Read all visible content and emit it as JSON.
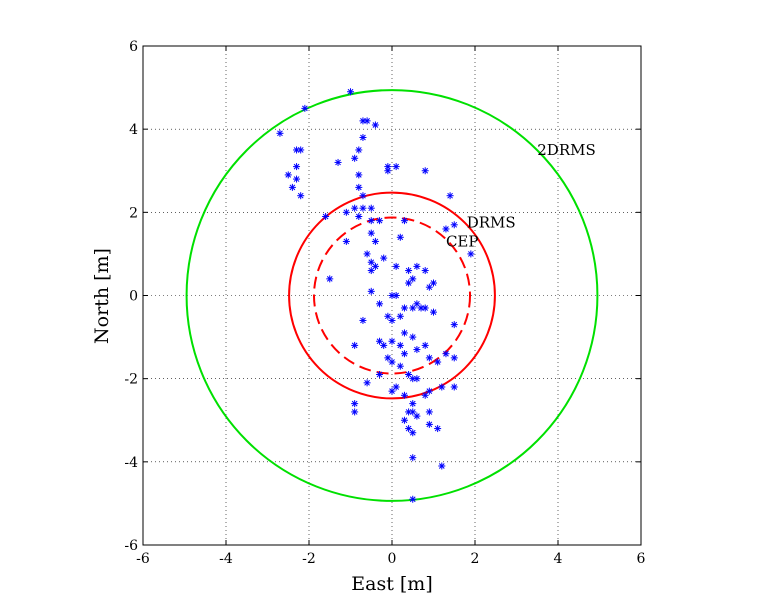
{
  "chart_data": {
    "type": "scatter",
    "title": "",
    "xlabel": "East [m]",
    "ylabel": "North [m]",
    "xlim": [
      -6,
      6
    ],
    "ylim": [
      -6,
      6
    ],
    "xticks": [
      "-6",
      "-4",
      "-2",
      "0",
      "2",
      "4",
      "6"
    ],
    "yticks": [
      "-6",
      "-4",
      "-2",
      "0",
      "2",
      "4",
      "6"
    ],
    "grid": true,
    "point_color": "#0000ff",
    "center": [
      0,
      0
    ],
    "circles": [
      {
        "label": "2DRMS",
        "radius": 4.95,
        "color": "#00e000",
        "style": "solid",
        "label_pos": [
          3.5,
          3.5
        ]
      },
      {
        "label": "DRMS",
        "radius": 2.48,
        "color": "#ff0000",
        "style": "solid",
        "label_pos": [
          1.8,
          1.75
        ]
      },
      {
        "label": "CEP",
        "radius": 1.88,
        "color": "#ff0000",
        "style": "dashed",
        "label_pos": [
          1.3,
          1.3
        ]
      }
    ],
    "points": [
      [
        -1.0,
        4.9
      ],
      [
        -2.1,
        4.5
      ],
      [
        -2.7,
        3.9
      ],
      [
        -2.2,
        3.5
      ],
      [
        -2.3,
        3.5
      ],
      [
        -2.5,
        2.9
      ],
      [
        -2.3,
        3.1
      ],
      [
        -2.3,
        2.8
      ],
      [
        -2.4,
        2.6
      ],
      [
        -2.2,
        2.4
      ],
      [
        -0.7,
        4.2
      ],
      [
        -0.6,
        4.2
      ],
      [
        -0.4,
        4.1
      ],
      [
        -0.7,
        3.8
      ],
      [
        -0.8,
        3.5
      ],
      [
        -0.9,
        3.3
      ],
      [
        -1.3,
        3.2
      ],
      [
        -0.8,
        2.9
      ],
      [
        -0.8,
        2.6
      ],
      [
        -0.7,
        2.4
      ],
      [
        -0.9,
        2.1
      ],
      [
        -0.7,
        2.1
      ],
      [
        -0.5,
        2.1
      ],
      [
        -1.1,
        2.0
      ],
      [
        -1.6,
        1.9
      ],
      [
        -0.8,
        1.9
      ],
      [
        -0.1,
        3.1
      ],
      [
        0.1,
        3.1
      ],
      [
        -0.1,
        3.0
      ],
      [
        0.8,
        3.0
      ],
      [
        1.4,
        2.4
      ],
      [
        -0.5,
        1.8
      ],
      [
        -0.3,
        1.8
      ],
      [
        0.3,
        1.8
      ],
      [
        1.3,
        1.6
      ],
      [
        1.5,
        1.7
      ],
      [
        1.9,
        1.0
      ],
      [
        -1.1,
        1.3
      ],
      [
        -0.5,
        1.5
      ],
      [
        -0.4,
        1.3
      ],
      [
        -0.6,
        1.0
      ],
      [
        -0.5,
        0.8
      ],
      [
        -0.5,
        0.6
      ],
      [
        -0.4,
        0.7
      ],
      [
        0.1,
        0.7
      ],
      [
        0.4,
        0.6
      ],
      [
        0.6,
        0.7
      ],
      [
        0.8,
        0.6
      ],
      [
        0.5,
        0.4
      ],
      [
        0.4,
        0.3
      ],
      [
        -0.5,
        0.1
      ],
      [
        0.0,
        0.0
      ],
      [
        0.1,
        0.0
      ],
      [
        0.3,
        -0.3
      ],
      [
        0.2,
        -0.5
      ],
      [
        0.5,
        -0.3
      ],
      [
        0.6,
        -0.2
      ],
      [
        0.7,
        -0.3
      ],
      [
        0.8,
        -0.3
      ],
      [
        1.0,
        -0.4
      ],
      [
        1.5,
        -0.7
      ],
      [
        -0.7,
        -0.6
      ],
      [
        -0.1,
        -0.5
      ],
      [
        0.0,
        -0.6
      ],
      [
        0.3,
        -0.9
      ],
      [
        0.5,
        -1.0
      ],
      [
        -0.9,
        -1.2
      ],
      [
        -0.3,
        -1.1
      ],
      [
        -0.2,
        -1.2
      ],
      [
        0.0,
        -1.1
      ],
      [
        0.2,
        -1.2
      ],
      [
        0.3,
        -1.4
      ],
      [
        0.6,
        -1.3
      ],
      [
        0.8,
        -1.2
      ],
      [
        0.9,
        -1.5
      ],
      [
        1.1,
        -1.6
      ],
      [
        1.3,
        -1.4
      ],
      [
        1.5,
        -1.5
      ],
      [
        -0.1,
        -1.5
      ],
      [
        0.0,
        -1.6
      ],
      [
        0.2,
        -1.7
      ],
      [
        0.4,
        -1.9
      ],
      [
        0.6,
        -2.0
      ],
      [
        0.5,
        -2.0
      ],
      [
        -0.3,
        -1.9
      ],
      [
        -0.6,
        -2.1
      ],
      [
        0.1,
        -2.2
      ],
      [
        0.3,
        -2.4
      ],
      [
        0.8,
        -2.4
      ],
      [
        0.9,
        -2.3
      ],
      [
        1.2,
        -2.2
      ],
      [
        1.5,
        -2.2
      ],
      [
        -0.9,
        -2.6
      ],
      [
        0.0,
        -2.3
      ],
      [
        0.5,
        -2.6
      ],
      [
        -0.9,
        -2.8
      ],
      [
        0.4,
        -2.8
      ],
      [
        0.5,
        -2.8
      ],
      [
        0.6,
        -2.9
      ],
      [
        0.9,
        -2.8
      ],
      [
        0.3,
        -3.0
      ],
      [
        0.4,
        -3.2
      ],
      [
        0.9,
        -3.1
      ],
      [
        1.1,
        -3.2
      ],
      [
        0.5,
        -3.3
      ],
      [
        1.2,
        -4.1
      ],
      [
        0.5,
        -3.9
      ],
      [
        0.5,
        -4.9
      ],
      [
        -1.5,
        0.4
      ],
      [
        -0.2,
        0.9
      ],
      [
        0.2,
        1.4
      ],
      [
        1.0,
        0.3
      ],
      [
        -0.3,
        -0.2
      ],
      [
        0.9,
        0.2
      ]
    ]
  }
}
